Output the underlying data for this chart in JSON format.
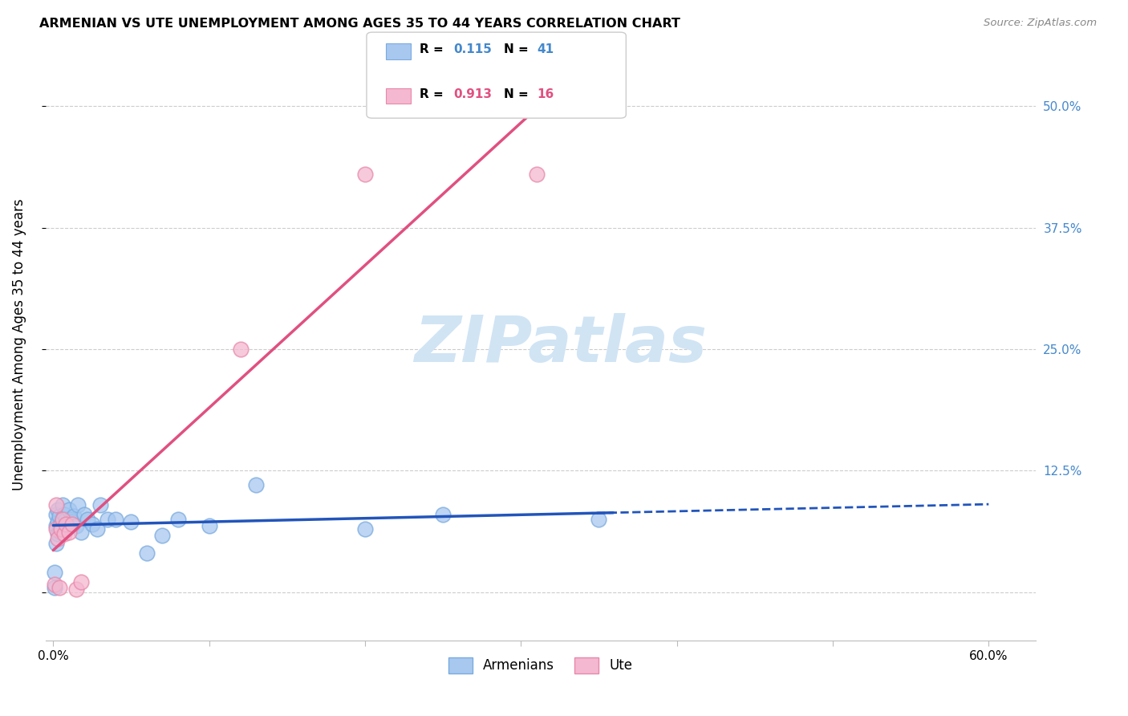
{
  "title": "ARMENIAN VS UTE UNEMPLOYMENT AMONG AGES 35 TO 44 YEARS CORRELATION CHART",
  "source": "Source: ZipAtlas.com",
  "ylabel": "Unemployment Among Ages 35 to 44 years",
  "armenians_R": 0.115,
  "armenians_N": 41,
  "ute_R": 0.913,
  "ute_N": 16,
  "armenians_color": "#a8c8f0",
  "armenians_edge": "#7aabdf",
  "ute_color": "#f4b8d0",
  "ute_edge": "#e888aa",
  "armenians_line_color": "#2255bb",
  "ute_line_color": "#e05080",
  "background_color": "#ffffff",
  "grid_color": "#cccccc",
  "ytick_color": "#4488cc",
  "watermark_color": "#d0e4f4",
  "arm_x": [
    0.001,
    0.001,
    0.002,
    0.002,
    0.002,
    0.003,
    0.003,
    0.003,
    0.004,
    0.004,
    0.005,
    0.005,
    0.006,
    0.006,
    0.007,
    0.007,
    0.008,
    0.009,
    0.01,
    0.011,
    0.012,
    0.013,
    0.015,
    0.016,
    0.018,
    0.02,
    0.022,
    0.025,
    0.028,
    0.03,
    0.035,
    0.04,
    0.05,
    0.06,
    0.07,
    0.08,
    0.1,
    0.13,
    0.2,
    0.25,
    0.35
  ],
  "arm_y": [
    0.005,
    0.02,
    0.05,
    0.068,
    0.08,
    0.06,
    0.072,
    0.085,
    0.065,
    0.078,
    0.07,
    0.062,
    0.075,
    0.09,
    0.068,
    0.08,
    0.075,
    0.07,
    0.085,
    0.075,
    0.072,
    0.078,
    0.068,
    0.09,
    0.062,
    0.08,
    0.075,
    0.07,
    0.065,
    0.09,
    0.075,
    0.075,
    0.072,
    0.04,
    0.058,
    0.075,
    0.068,
    0.11,
    0.065,
    0.08,
    0.075
  ],
  "ute_x": [
    0.001,
    0.002,
    0.002,
    0.003,
    0.004,
    0.005,
    0.006,
    0.007,
    0.008,
    0.01,
    0.012,
    0.015,
    0.018,
    0.12,
    0.2,
    0.31
  ],
  "ute_y": [
    0.008,
    0.065,
    0.09,
    0.055,
    0.005,
    0.065,
    0.075,
    0.06,
    0.07,
    0.062,
    0.07,
    0.003,
    0.01,
    0.25,
    0.43,
    0.43
  ],
  "xlim": [
    -0.005,
    0.63
  ],
  "ylim": [
    -0.05,
    0.56
  ],
  "xticks": [
    0.0,
    0.1,
    0.2,
    0.3,
    0.4,
    0.5,
    0.6
  ],
  "yticks": [
    0.0,
    0.125,
    0.25,
    0.375,
    0.5
  ],
  "yticklabels_right": [
    "",
    "12.5%",
    "25.0%",
    "37.5%",
    "50.0%"
  ]
}
